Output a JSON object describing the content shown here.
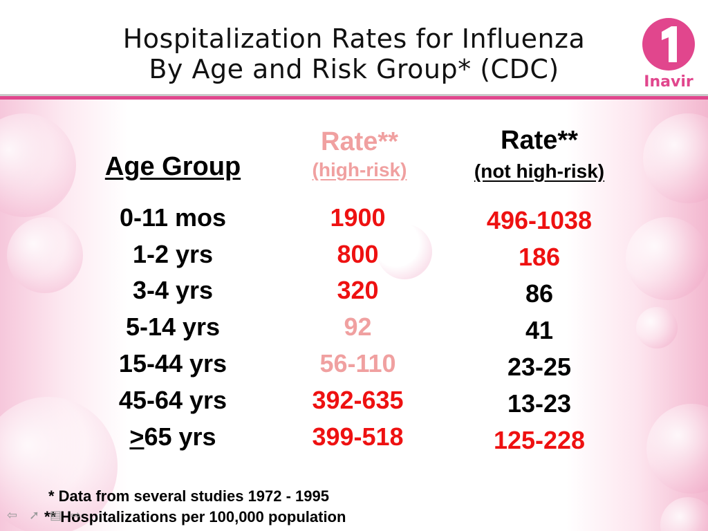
{
  "header": {
    "title_line1": "Hospitalization Rates for Influenza",
    "title_line2": "By Age and Risk Group* (CDC)",
    "logo_numeral": "1",
    "logo_text": "Inavir",
    "brand_color": "#e1468d"
  },
  "table": {
    "col_age": "Age Group",
    "col_high_rate": "Rate**",
    "col_high_sub": "(high-risk)",
    "col_not_rate": "Rate**",
    "col_not_sub": "(not high-risk)",
    "rows": [
      {
        "age": "0-11 mos",
        "high": "1900",
        "high_color": "red",
        "not": "496-1038",
        "not_color": "red"
      },
      {
        "age": "1-2 yrs",
        "high": "800",
        "high_color": "red",
        "not": "186",
        "not_color": "red"
      },
      {
        "age": "3-4 yrs",
        "high": "320",
        "high_color": "red",
        "not": "86",
        "not_color": "black"
      },
      {
        "age": "5-14 yrs",
        "high": "92",
        "high_color": "pink",
        "not": "41",
        "not_color": "black"
      },
      {
        "age": "15-44 yrs",
        "high": "56-110",
        "high_color": "pink",
        "not": "23-25",
        "not_color": "black"
      },
      {
        "age": "45-64 yrs",
        "high": "392-635",
        "high_color": "red",
        "not": "13-23",
        "not_color": "black"
      },
      {
        "age_prefix": ">",
        "age": "65 yrs",
        "high": "399-518",
        "high_color": "red",
        "not": "125-228",
        "not_color": "red"
      }
    ]
  },
  "footnotes": {
    "note1": "* Data from several studies 1972 - 1995",
    "note2": "** Hospitalizations per 100,000 population"
  },
  "nav": {
    "prev_icon": "arrow-left-icon",
    "pen_icon": "pen-icon",
    "menu_icon": "menu-icon",
    "next_icon": "arrow-right-icon"
  }
}
